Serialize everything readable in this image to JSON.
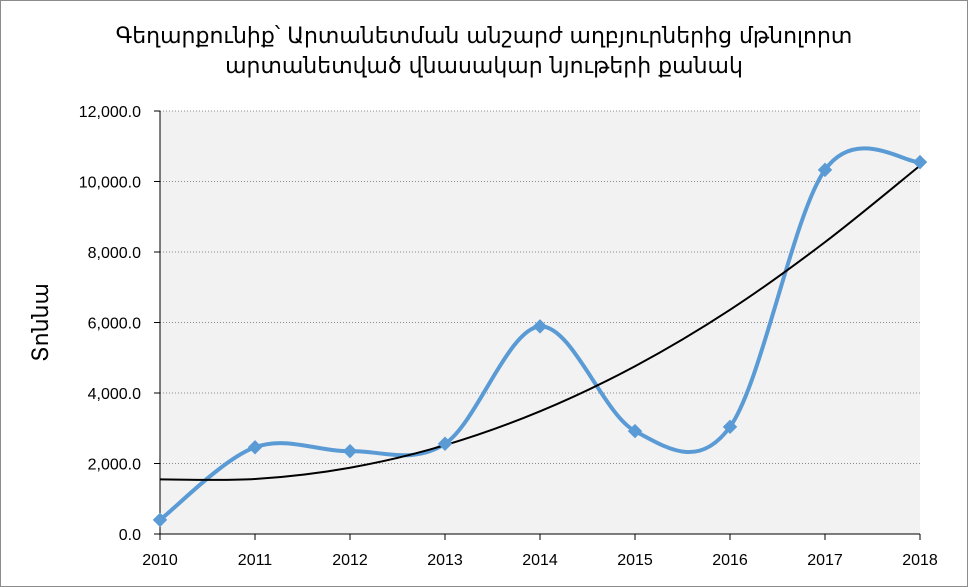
{
  "chart_data": {
    "type": "line",
    "title_lines": [
      "Գեղարքունիք՝ Արտանետման անշարժ աղբյուրներից մթնոլորտ",
      "արտանետված վնասակար նյութերի քանակ"
    ],
    "xlabel": "",
    "ylabel": "Տոննա",
    "x": [
      "2010",
      "2011",
      "2012",
      "2013",
      "2014",
      "2015",
      "2016",
      "2017",
      "2018"
    ],
    "series": [
      {
        "values": [
          400,
          2460,
          2350,
          2560,
          5890,
          2920,
          3040,
          10330,
          10550
        ],
        "color": "#5b9bd5",
        "marker": "diamond",
        "smooth": true
      }
    ],
    "trendline": {
      "type": "polynomial",
      "values": [
        1550,
        1560,
        1880,
        2520,
        3480,
        4760,
        6360,
        8280,
        10450
      ],
      "color": "#000000"
    },
    "yticks": [
      "0.0",
      "2,000.0",
      "4,000.0",
      "6,000.0",
      "8,000.0",
      "10,000.0",
      "12,000.0"
    ],
    "ylim": [
      0,
      12000
    ],
    "grid": "horizontal-dotted",
    "plot_background": "#f2f2f2"
  }
}
